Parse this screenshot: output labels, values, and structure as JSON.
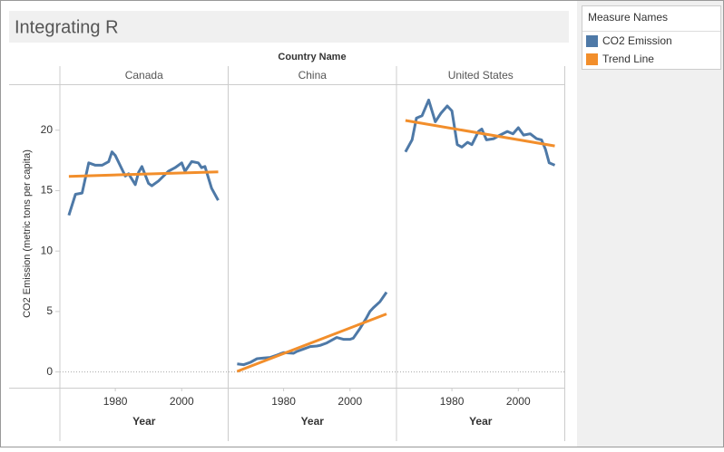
{
  "chart_data": {
    "type": "line",
    "title": "Integrating R",
    "facet_label": "Country Name",
    "y_label": "CO2 Emission (metric tons per capita)",
    "x_label": "Year",
    "legend_title": "Measure Names",
    "ylim": [
      -1.3,
      23.8
    ],
    "yticks": [
      0,
      5,
      10,
      15,
      20
    ],
    "xlim": [
      1963.3,
      2014
    ],
    "xticks": [
      1980,
      2000
    ],
    "panels": [
      {
        "name": "Canada",
        "series": [
          {
            "name": "CO2 Emission",
            "color": "#4e79a7",
            "x": [
              1966,
              1968,
              1970,
              1972,
              1974,
              1976,
              1978,
              1979,
              1980,
              1983,
              1984,
              1986,
              1987,
              1988,
              1990,
              1991,
              1993,
              1996,
              1998,
              2000,
              2001,
              2003,
              2005,
              2006,
              2007,
              2009,
              2011
            ],
            "values": [
              12.96,
              14.7,
              14.8,
              17.3,
              17.1,
              17.1,
              17.4,
              18.2,
              17.9,
              16.2,
              16.4,
              15.5,
              16.5,
              17.0,
              15.6,
              15.4,
              15.8,
              16.6,
              16.9,
              17.3,
              16.6,
              17.4,
              17.3,
              16.9,
              17.0,
              15.2,
              14.2
            ]
          },
          {
            "name": "Trend Line",
            "color": "#f28e2b",
            "x": [
              1966,
              2011
            ],
            "values": [
              16.18,
              16.55
            ]
          }
        ]
      },
      {
        "name": "China",
        "series": [
          {
            "name": "CO2 Emission",
            "color": "#4e79a7",
            "x": [
              1966,
              1968,
              1970,
              1972,
              1974,
              1976,
              1978,
              1979,
              1980,
              1983,
              1984,
              1986,
              1987,
              1988,
              1990,
              1991,
              1993,
              1996,
              1998,
              2000,
              2001,
              2003,
              2005,
              2006,
              2007,
              2009,
              2011
            ],
            "values": [
              0.67,
              0.6,
              0.8,
              1.1,
              1.15,
              1.2,
              1.4,
              1.5,
              1.6,
              1.55,
              1.7,
              1.9,
              2.0,
              2.1,
              2.15,
              2.2,
              2.4,
              2.85,
              2.7,
              2.7,
              2.8,
              3.6,
              4.5,
              5.0,
              5.3,
              5.8,
              6.6
            ]
          },
          {
            "name": "Trend Line",
            "color": "#f28e2b",
            "x": [
              1966,
              2011
            ],
            "values": [
              0.05,
              4.8
            ]
          }
        ]
      },
      {
        "name": "United States",
        "series": [
          {
            "name": "CO2 Emission",
            "color": "#4e79a7",
            "x": [
              1966,
              1968,
              1969.3,
              1971,
              1973,
              1975,
              1976.7,
              1978.6,
              1980,
              1981.6,
              1983,
              1984.7,
              1986,
              1988,
              1989,
              1990.4,
              1992.6,
              1994.5,
              1996.7,
              1998.4,
              2000,
              2001.6,
              2003.6,
              2005.5,
              2007,
              2008.2,
              2009.3,
              2011
            ],
            "values": [
              18.2,
              19.2,
              21.0,
              21.2,
              22.5,
              20.7,
              21.4,
              22.0,
              21.6,
              18.8,
              18.6,
              19.0,
              18.8,
              19.9,
              20.1,
              19.2,
              19.3,
              19.6,
              19.9,
              19.7,
              20.2,
              19.6,
              19.7,
              19.3,
              19.2,
              18.4,
              17.3,
              17.1
            ]
          },
          {
            "name": "Trend Line",
            "color": "#f28e2b",
            "x": [
              1966,
              2011
            ],
            "values": [
              20.8,
              18.7
            ]
          }
        ]
      }
    ]
  }
}
